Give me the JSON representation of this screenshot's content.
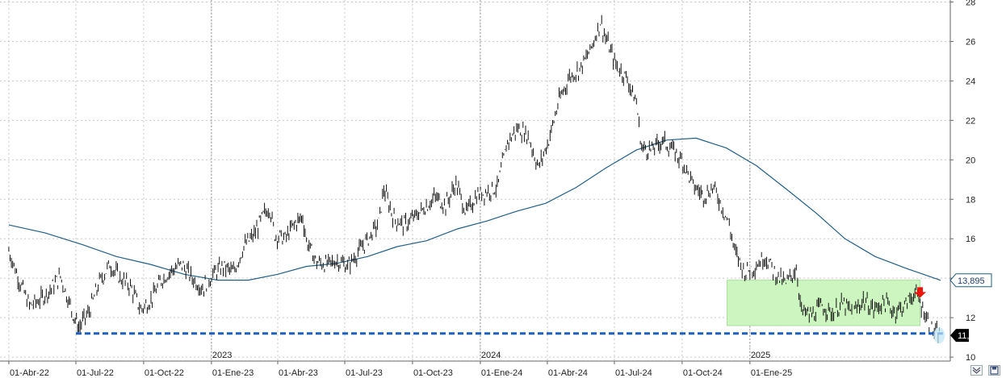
{
  "chart_data": {
    "type": "line",
    "y_ticks": [
      10,
      12,
      14,
      16,
      18,
      20,
      22,
      24,
      26,
      28
    ],
    "ylim": [
      9.8,
      28.1
    ],
    "x_tick_labels": [
      "01-Abr-22",
      "01-Jul-22",
      "01-Oct-22",
      "01-Ene-23",
      "01-Abr-23",
      "01-Jul-23",
      "01-Oct-23",
      "01-Ene-24",
      "01-Abr-24",
      "01-Jul-24",
      "01-Oct-24",
      "01-Ene-25"
    ],
    "year_labels": [
      "2023",
      "2024",
      "2025"
    ],
    "grid": true,
    "price_series": [
      {
        "d": "2022-04-01",
        "v": 15.4
      },
      {
        "d": "2022-04-15",
        "v": 13.9
      },
      {
        "d": "2022-04-29",
        "v": 12.6
      },
      {
        "d": "2022-05-13",
        "v": 12.9
      },
      {
        "d": "2022-05-27",
        "v": 13.4
      },
      {
        "d": "2022-06-10",
        "v": 14.1
      },
      {
        "d": "2022-06-20",
        "v": 13.0
      },
      {
        "d": "2022-06-27",
        "v": 12.2
      },
      {
        "d": "2022-07-05",
        "v": 11.5
      },
      {
        "d": "2022-07-19",
        "v": 12.3
      },
      {
        "d": "2022-08-02",
        "v": 13.8
      },
      {
        "d": "2022-08-16",
        "v": 14.7
      },
      {
        "d": "2022-08-30",
        "v": 14.0
      },
      {
        "d": "2022-09-13",
        "v": 13.6
      },
      {
        "d": "2022-09-27",
        "v": 12.4
      },
      {
        "d": "2022-10-11",
        "v": 12.9
      },
      {
        "d": "2022-10-25",
        "v": 13.9
      },
      {
        "d": "2022-11-08",
        "v": 14.4
      },
      {
        "d": "2022-11-22",
        "v": 14.7
      },
      {
        "d": "2022-12-06",
        "v": 14.0
      },
      {
        "d": "2022-12-20",
        "v": 13.5
      },
      {
        "d": "2023-01-03",
        "v": 14.2
      },
      {
        "d": "2023-01-17",
        "v": 14.6
      },
      {
        "d": "2023-01-31",
        "v": 14.3
      },
      {
        "d": "2023-02-14",
        "v": 15.6
      },
      {
        "d": "2023-02-28",
        "v": 16.2
      },
      {
        "d": "2023-03-14",
        "v": 17.3
      },
      {
        "d": "2023-03-21",
        "v": 17.6
      },
      {
        "d": "2023-03-28",
        "v": 16.2
      },
      {
        "d": "2023-04-11",
        "v": 16.0
      },
      {
        "d": "2023-04-25",
        "v": 16.8
      },
      {
        "d": "2023-05-05",
        "v": 17.1
      },
      {
        "d": "2023-05-10",
        "v": 15.9
      },
      {
        "d": "2023-05-24",
        "v": 14.8
      },
      {
        "d": "2023-06-07",
        "v": 14.7
      },
      {
        "d": "2023-06-21",
        "v": 14.9
      },
      {
        "d": "2023-07-05",
        "v": 14.6
      },
      {
        "d": "2023-07-19",
        "v": 15.3
      },
      {
        "d": "2023-08-02",
        "v": 16.0
      },
      {
        "d": "2023-08-16",
        "v": 16.8
      },
      {
        "d": "2023-08-23",
        "v": 18.5
      },
      {
        "d": "2023-09-06",
        "v": 17.0
      },
      {
        "d": "2023-09-20",
        "v": 16.7
      },
      {
        "d": "2023-10-04",
        "v": 17.1
      },
      {
        "d": "2023-10-18",
        "v": 17.6
      },
      {
        "d": "2023-11-01",
        "v": 18.1
      },
      {
        "d": "2023-11-15",
        "v": 17.7
      },
      {
        "d": "2023-11-29",
        "v": 18.8
      },
      {
        "d": "2023-12-13",
        "v": 17.3
      },
      {
        "d": "2023-12-27",
        "v": 18.2
      },
      {
        "d": "2024-01-10",
        "v": 18.4
      },
      {
        "d": "2024-01-24",
        "v": 18.6
      },
      {
        "d": "2024-02-07",
        "v": 20.9
      },
      {
        "d": "2024-02-21",
        "v": 21.6
      },
      {
        "d": "2024-03-06",
        "v": 21.2
      },
      {
        "d": "2024-03-20",
        "v": 19.6
      },
      {
        "d": "2024-04-03",
        "v": 21.0
      },
      {
        "d": "2024-04-17",
        "v": 23.0
      },
      {
        "d": "2024-05-01",
        "v": 24.2
      },
      {
        "d": "2024-05-15",
        "v": 24.6
      },
      {
        "d": "2024-05-29",
        "v": 25.5
      },
      {
        "d": "2024-06-12",
        "v": 27.0
      },
      {
        "d": "2024-06-19",
        "v": 26.2
      },
      {
        "d": "2024-07-03",
        "v": 24.8
      },
      {
        "d": "2024-07-17",
        "v": 24.2
      },
      {
        "d": "2024-07-31",
        "v": 22.9
      },
      {
        "d": "2024-08-07",
        "v": 20.6
      },
      {
        "d": "2024-08-21",
        "v": 20.5
      },
      {
        "d": "2024-09-04",
        "v": 21.0
      },
      {
        "d": "2024-09-18",
        "v": 20.5
      },
      {
        "d": "2024-10-02",
        "v": 19.9
      },
      {
        "d": "2024-10-16",
        "v": 18.7
      },
      {
        "d": "2024-10-30",
        "v": 18.2
      },
      {
        "d": "2024-11-13",
        "v": 18.6
      },
      {
        "d": "2024-11-20",
        "v": 18.0
      },
      {
        "d": "2024-12-04",
        "v": 16.7
      },
      {
        "d": "2024-12-11",
        "v": 15.4
      },
      {
        "d": "2024-12-25",
        "v": 14.3
      },
      {
        "d": "2025-01-08",
        "v": 14.6
      },
      {
        "d": "2025-01-22",
        "v": 15.1
      },
      {
        "d": "2025-02-05",
        "v": 14.2
      },
      {
        "d": "2025-02-19",
        "v": 13.7
      },
      {
        "d": "2025-03-05",
        "v": 14.5
      },
      {
        "d": "2025-03-12",
        "v": 12.3
      },
      {
        "d": "2025-03-26",
        "v": 12.1
      },
      {
        "d": "2025-04-09",
        "v": 12.6
      },
      {
        "d": "2025-04-23",
        "v": 12.2
      },
      {
        "d": "2025-05-07",
        "v": 12.7
      },
      {
        "d": "2025-05-21",
        "v": 12.2
      },
      {
        "d": "2025-06-04",
        "v": 12.9
      },
      {
        "d": "2025-06-18",
        "v": 12.4
      },
      {
        "d": "2025-07-02",
        "v": 12.8
      },
      {
        "d": "2025-07-16",
        "v": 12.3
      },
      {
        "d": "2025-07-30",
        "v": 12.6
      },
      {
        "d": "2025-08-13",
        "v": 13.3
      },
      {
        "d": "2025-08-27",
        "v": 12.2
      },
      {
        "d": "2025-09-03",
        "v": 11.5
      },
      {
        "d": "2025-09-10",
        "v": 11.2
      },
      {
        "d": "2025-09-17",
        "v": 11.1
      }
    ],
    "moving_average": [
      {
        "d": "2022-04-01",
        "v": 16.7
      },
      {
        "d": "2022-05-20",
        "v": 16.3
      },
      {
        "d": "2022-07-10",
        "v": 15.7
      },
      {
        "d": "2022-08-25",
        "v": 15.1
      },
      {
        "d": "2022-10-10",
        "v": 14.7
      },
      {
        "d": "2022-11-25",
        "v": 14.2
      },
      {
        "d": "2023-01-10",
        "v": 13.9
      },
      {
        "d": "2023-02-20",
        "v": 13.9
      },
      {
        "d": "2023-04-01",
        "v": 14.2
      },
      {
        "d": "2023-05-10",
        "v": 14.6
      },
      {
        "d": "2023-06-20",
        "v": 14.75
      },
      {
        "d": "2023-08-01",
        "v": 15.1
      },
      {
        "d": "2023-09-10",
        "v": 15.6
      },
      {
        "d": "2023-10-20",
        "v": 15.9
      },
      {
        "d": "2023-12-01",
        "v": 16.5
      },
      {
        "d": "2024-01-10",
        "v": 16.9
      },
      {
        "d": "2024-02-20",
        "v": 17.4
      },
      {
        "d": "2024-03-30",
        "v": 17.8
      },
      {
        "d": "2024-05-10",
        "v": 18.6
      },
      {
        "d": "2024-06-20",
        "v": 19.6
      },
      {
        "d": "2024-07-31",
        "v": 20.5
      },
      {
        "d": "2024-09-10",
        "v": 21.0
      },
      {
        "d": "2024-10-20",
        "v": 21.1
      },
      {
        "d": "2024-11-30",
        "v": 20.6
      },
      {
        "d": "2025-01-10",
        "v": 19.7
      },
      {
        "d": "2025-02-20",
        "v": 18.5
      },
      {
        "d": "2025-04-01",
        "v": 17.3
      },
      {
        "d": "2025-05-10",
        "v": 16.0
      },
      {
        "d": "2025-06-20",
        "v": 15.1
      },
      {
        "d": "2025-08-01",
        "v": 14.5
      },
      {
        "d": "2025-09-17",
        "v": 13.895
      }
    ],
    "support_line": {
      "value": 11.2,
      "start": "2022-07-01",
      "end": "2025-09-20"
    },
    "consolidation_box": {
      "start": "2024-12-01",
      "end": "2025-08-20",
      "top": 13.9,
      "bottom": 11.6
    },
    "sell_arrow": {
      "d": "2025-08-20",
      "v": 13.3
    },
    "last_price_highlight": {
      "d": "2025-09-15",
      "v": 11.1
    },
    "ma_value_label": "13,895",
    "price_value_label": "11,1"
  },
  "colors": {
    "price": "#111111",
    "moving_average": "#1f5f8b",
    "support": "#1f5fbf",
    "box_fill": "#ccf5c0",
    "box_stroke": "#a7e29a",
    "arrow": "#e8160c",
    "highlight": "#bfe6f5",
    "ma_tag_bg": "#ffffff",
    "price_tag_bg": "#000000",
    "grid": "#c8c8c8"
  },
  "icons": {
    "corner_left": "collapse-chevrons-icon",
    "corner_right": "save-icon"
  }
}
